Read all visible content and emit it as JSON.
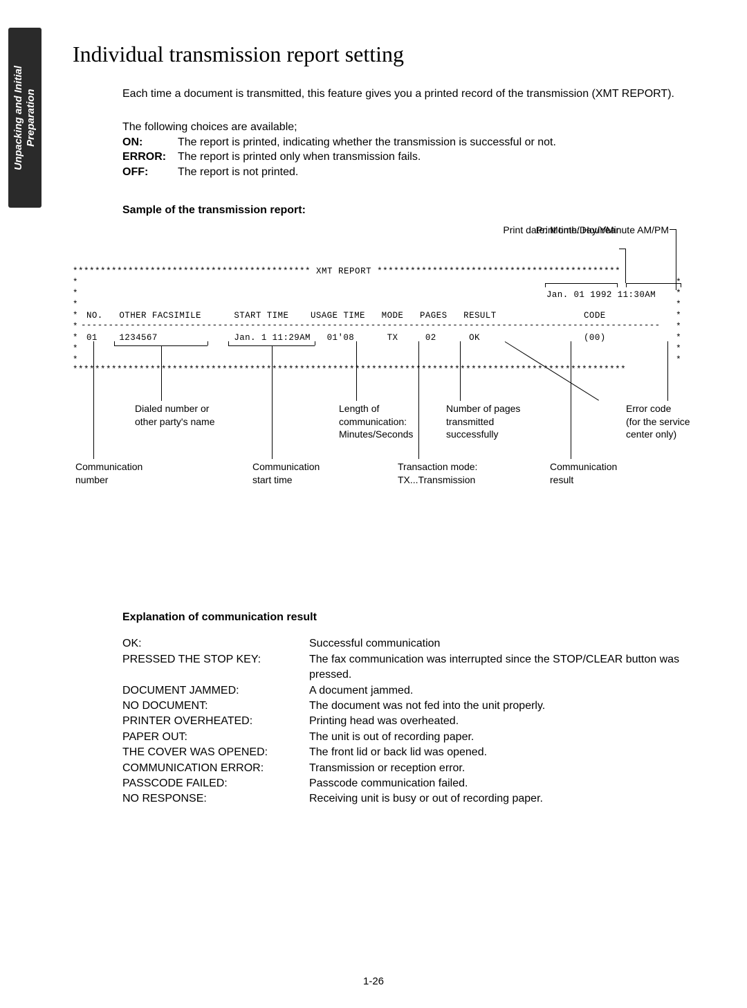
{
  "sideTab": "Unpacking and Initial\nPreparation",
  "title": "Individual transmission report setting",
  "intro": "Each time a document is transmitted, this feature gives you a printed record of the transmission (XMT REPORT).",
  "choicesLead": "The following choices are available;",
  "choices": [
    {
      "key": "ON:",
      "desc": "The report is printed, indicating whether the transmission is successful or not."
    },
    {
      "key": "ERROR:",
      "desc": "The report is printed only when transmission fails."
    },
    {
      "key": "OFF:",
      "desc": "The report is not printed."
    }
  ],
  "sampleHead": "Sample of the transmission report:",
  "report": {
    "topLabel1": "Print time:  Hour/Minute AM/PM",
    "topLabel2": "Print date:  Month/Day/Year",
    "titleRow": "******************************************* XMT REPORT ********************************************",
    "dateTime": "Jan. 01 1992 11:30AM",
    "headers": "NO.   OTHER FACSIMILE      START TIME    USAGE TIME   MODE   PAGES   RESULT                CODE",
    "dataRow": "01    1234567              Jan. 1 11:29AM   01'08      TX     02      OK                   (00)",
    "callouts": {
      "dialed": "Dialed number or\nother party's name",
      "commNum": "Communication\nnumber",
      "startTime": "Communication\nstart time",
      "length": "Length of\ncommunication:\nMinutes/Seconds",
      "txMode": "Transaction mode:\nTX...Transmission",
      "pages": "Number of pages\ntransmitted\nsuccessfully",
      "result": "Communication\nresult",
      "error": "Error code\n(for the service\ncenter only)"
    }
  },
  "explHead": "Explanation of communication result",
  "explanations": [
    {
      "k": "OK:",
      "v": "Successful communication"
    },
    {
      "k": "PRESSED THE STOP KEY:",
      "v": "The fax communication was interrupted since the STOP/CLEAR button was pressed."
    },
    {
      "k": "DOCUMENT JAMMED:",
      "v": "A document jammed."
    },
    {
      "k": "NO DOCUMENT:",
      "v": "The document was not fed into the unit properly."
    },
    {
      "k": "PRINTER OVERHEATED:",
      "v": "Printing head was overheated."
    },
    {
      "k": "PAPER OUT:",
      "v": "The unit is out of recording paper."
    },
    {
      "k": "THE COVER WAS OPENED:",
      "v": "The front lid or back lid was opened."
    },
    {
      "k": "COMMUNICATION ERROR:",
      "v": "Transmission or reception error."
    },
    {
      "k": "PASSCODE FAILED:",
      "v": "Passcode communication failed."
    },
    {
      "k": "NO RESPONSE:",
      "v": "Receiving unit is busy or out of recording paper."
    }
  ],
  "pageNo": "1-26"
}
